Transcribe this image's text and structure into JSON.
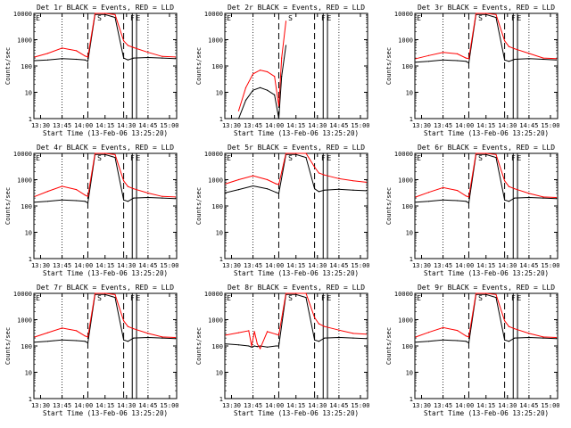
{
  "figure": {
    "xtick_labels": [
      "13:30",
      "13:45",
      "14:00",
      "14:15",
      "14:30",
      "14:45",
      "15:00"
    ],
    "ytick_labels": [
      "1",
      "10",
      "100",
      "1000",
      "10000"
    ],
    "xlabel": "Start Time (13-Feb-06 13:25:20)",
    "ylabel": "Counts/sec",
    "marker_labels": [
      "E",
      "S",
      "F",
      "E"
    ],
    "colors": {
      "events": "#000000",
      "lld": "#ff0000",
      "background": "#ffffff"
    }
  },
  "chart_data": [
    {
      "type": "line",
      "title": "Det 1r BLACK = Events, RED = LLD",
      "xlabel": "Start Time (13-Feb-06 13:25:20)",
      "ylabel": "Counts/sec",
      "xlim": [
        "13:25:20",
        "15:05"
      ],
      "ylim": [
        1,
        10000
      ],
      "yscale": "log",
      "x": [
        "13:26",
        "13:35",
        "13:45",
        "13:55",
        "14:01",
        "14:03",
        "14:08",
        "14:15",
        "14:22",
        "14:28",
        "14:31",
        "14:35",
        "14:45",
        "14:55",
        "15:04"
      ],
      "series": [
        {
          "name": "Events",
          "values": [
            160,
            170,
            190,
            180,
            170,
            150,
            9000,
            9000,
            7000,
            200,
            170,
            200,
            210,
            200,
            190
          ]
        },
        {
          "name": "LLD",
          "values": [
            220,
            300,
            480,
            380,
            240,
            220,
            10000,
            10000,
            9000,
            900,
            600,
            500,
            330,
            230,
            220
          ]
        }
      ]
    },
    {
      "type": "line",
      "title": "Det 2r BLACK = Events, RED = LLD",
      "xlabel": "Start Time (13-Feb-06 13:25:20)",
      "ylabel": "Counts/sec",
      "xlim": [
        "13:25:20",
        "15:05"
      ],
      "ylim": [
        1,
        10000
      ],
      "yscale": "log",
      "x": [
        "13:35",
        "13:40",
        "13:45",
        "13:50",
        "13:55",
        "14:00",
        "14:03",
        "14:05",
        "14:08"
      ],
      "series": [
        {
          "name": "Events",
          "values": [
            1,
            5,
            12,
            15,
            12,
            8,
            1,
            40,
            600
          ]
        },
        {
          "name": "LLD",
          "values": [
            2,
            15,
            50,
            70,
            60,
            40,
            3,
            200,
            5000
          ]
        }
      ]
    },
    {
      "type": "line",
      "title": "Det 3r BLACK = Events, RED = LLD",
      "xlabel": "Start Time (13-Feb-06 13:25:20)",
      "ylabel": "Counts/sec",
      "xlim": [
        "13:25:20",
        "15:05"
      ],
      "ylim": [
        1,
        10000
      ],
      "yscale": "log",
      "x": [
        "13:26",
        "13:35",
        "13:45",
        "13:55",
        "14:01",
        "14:03",
        "14:08",
        "14:15",
        "14:22",
        "14:28",
        "14:31",
        "14:35",
        "14:45",
        "14:55",
        "15:04"
      ],
      "series": [
        {
          "name": "Events",
          "values": [
            140,
            150,
            170,
            160,
            150,
            130,
            9000,
            9000,
            7000,
            170,
            150,
            180,
            190,
            180,
            170
          ]
        },
        {
          "name": "LLD",
          "values": [
            190,
            250,
            330,
            290,
            200,
            190,
            10000,
            10000,
            9000,
            900,
            550,
            450,
            300,
            200,
            190
          ]
        }
      ]
    },
    {
      "type": "line",
      "title": "Det 4r BLACK = Events, RED = LLD",
      "xlabel": "Start Time (13-Feb-06 13:25:20)",
      "ylabel": "Counts/sec",
      "xlim": [
        "13:25:20",
        "15:05"
      ],
      "ylim": [
        1,
        10000
      ],
      "yscale": "log",
      "x": [
        "13:26",
        "13:35",
        "13:45",
        "13:55",
        "14:01",
        "14:03",
        "14:08",
        "14:15",
        "14:22",
        "14:28",
        "14:31",
        "14:35",
        "14:45",
        "14:55",
        "15:04"
      ],
      "series": [
        {
          "name": "Events",
          "values": [
            140,
            150,
            170,
            160,
            150,
            130,
            9000,
            9000,
            7000,
            170,
            150,
            200,
            210,
            200,
            190
          ]
        },
        {
          "name": "LLD",
          "values": [
            230,
            360,
            560,
            420,
            260,
            230,
            10000,
            10000,
            9000,
            900,
            550,
            450,
            310,
            230,
            220
          ]
        }
      ]
    },
    {
      "type": "line",
      "title": "Det 5r BLACK = Events, RED = LLD",
      "xlabel": "Start Time (13-Feb-06 13:25:20)",
      "ylabel": "Counts/sec",
      "xlim": [
        "13:25:20",
        "15:05"
      ],
      "ylim": [
        1,
        10000
      ],
      "yscale": "log",
      "x": [
        "13:26",
        "13:35",
        "13:45",
        "13:55",
        "14:01",
        "14:03",
        "14:08",
        "14:15",
        "14:22",
        "14:28",
        "14:31",
        "14:35",
        "14:45",
        "14:55",
        "15:04"
      ],
      "series": [
        {
          "name": "Events",
          "values": [
            320,
            420,
            580,
            450,
            330,
            300,
            9000,
            9000,
            7000,
            450,
            350,
            400,
            430,
            400,
            380
          ]
        },
        {
          "name": "LLD",
          "values": [
            700,
            1000,
            1400,
            1000,
            700,
            650,
            10000,
            10000,
            10000,
            3000,
            1800,
            1500,
            1100,
            900,
            800
          ]
        }
      ]
    },
    {
      "type": "line",
      "title": "Det 6r BLACK = Events, RED = LLD",
      "xlabel": "Start Time (13-Feb-06 13:25:20)",
      "ylabel": "Counts/sec",
      "xlim": [
        "13:25:20",
        "15:05"
      ],
      "ylim": [
        1,
        10000
      ],
      "yscale": "log",
      "x": [
        "13:26",
        "13:35",
        "13:45",
        "13:55",
        "14:01",
        "14:03",
        "14:08",
        "14:15",
        "14:22",
        "14:28",
        "14:31",
        "14:35",
        "14:45",
        "14:55",
        "15:04"
      ],
      "series": [
        {
          "name": "Events",
          "values": [
            140,
            150,
            170,
            160,
            150,
            130,
            9000,
            9000,
            7000,
            170,
            150,
            200,
            210,
            200,
            190
          ]
        },
        {
          "name": "LLD",
          "values": [
            220,
            330,
            500,
            390,
            240,
            220,
            10000,
            10000,
            9000,
            900,
            550,
            450,
            300,
            220,
            210
          ]
        }
      ]
    },
    {
      "type": "line",
      "title": "Det 7r BLACK = Events, RED = LLD",
      "xlabel": "Start Time (13-Feb-06 13:25:20)",
      "ylabel": "Counts/sec",
      "xlim": [
        "13:25:20",
        "15:05"
      ],
      "ylim": [
        1,
        10000
      ],
      "yscale": "log",
      "x": [
        "13:26",
        "13:35",
        "13:45",
        "13:55",
        "14:01",
        "14:03",
        "14:08",
        "14:15",
        "14:22",
        "14:28",
        "14:31",
        "14:35",
        "14:45",
        "14:55",
        "15:04"
      ],
      "series": [
        {
          "name": "Events",
          "values": [
            140,
            150,
            170,
            160,
            150,
            130,
            9000,
            9000,
            7000,
            170,
            150,
            200,
            210,
            200,
            190
          ]
        },
        {
          "name": "LLD",
          "values": [
            220,
            320,
            480,
            380,
            240,
            220,
            10000,
            10000,
            9000,
            900,
            550,
            450,
            300,
            220,
            210
          ]
        }
      ]
    },
    {
      "type": "line",
      "title": "Det 8r BLACK = Events, RED = LLD",
      "xlabel": "Start Time (13-Feb-06 13:25:20)",
      "ylabel": "Counts/sec",
      "xlim": [
        "13:25:20",
        "15:05"
      ],
      "ylim": [
        1,
        10000
      ],
      "yscale": "log",
      "x": [
        "13:26",
        "13:35",
        "13:42",
        "13:44",
        "13:46",
        "13:48",
        "13:50",
        "13:55",
        "14:01",
        "14:03",
        "14:08",
        "14:15",
        "14:22",
        "14:28",
        "14:31",
        "14:35",
        "14:45",
        "14:55",
        "15:04"
      ],
      "series": [
        {
          "name": "Events",
          "values": [
            120,
            110,
            100,
            90,
            100,
            95,
            100,
            90,
            100,
            100,
            9000,
            9000,
            7000,
            170,
            150,
            200,
            210,
            200,
            190
          ]
        },
        {
          "name": "LLD",
          "values": [
            260,
            320,
            380,
            100,
            350,
            120,
            80,
            350,
            280,
            260,
            10000,
            10000,
            10000,
            1200,
            700,
            550,
            400,
            300,
            280
          ]
        }
      ]
    },
    {
      "type": "line",
      "title": "Det 9r BLACK = Events, RED = LLD",
      "xlabel": "Start Time (13-Feb-06 13:25:20)",
      "ylabel": "Counts/sec",
      "xlim": [
        "13:25:20",
        "15:05"
      ],
      "ylim": [
        1,
        10000
      ],
      "yscale": "log",
      "x": [
        "13:26",
        "13:35",
        "13:45",
        "13:55",
        "14:01",
        "14:03",
        "14:08",
        "14:15",
        "14:22",
        "14:28",
        "14:31",
        "14:35",
        "14:45",
        "14:55",
        "15:04"
      ],
      "series": [
        {
          "name": "Events",
          "values": [
            140,
            150,
            170,
            160,
            150,
            130,
            9000,
            9000,
            7000,
            170,
            150,
            200,
            210,
            200,
            190
          ]
        },
        {
          "name": "LLD",
          "values": [
            220,
            330,
            500,
            390,
            240,
            220,
            10000,
            10000,
            9000,
            900,
            550,
            450,
            300,
            220,
            210
          ]
        }
      ]
    }
  ]
}
